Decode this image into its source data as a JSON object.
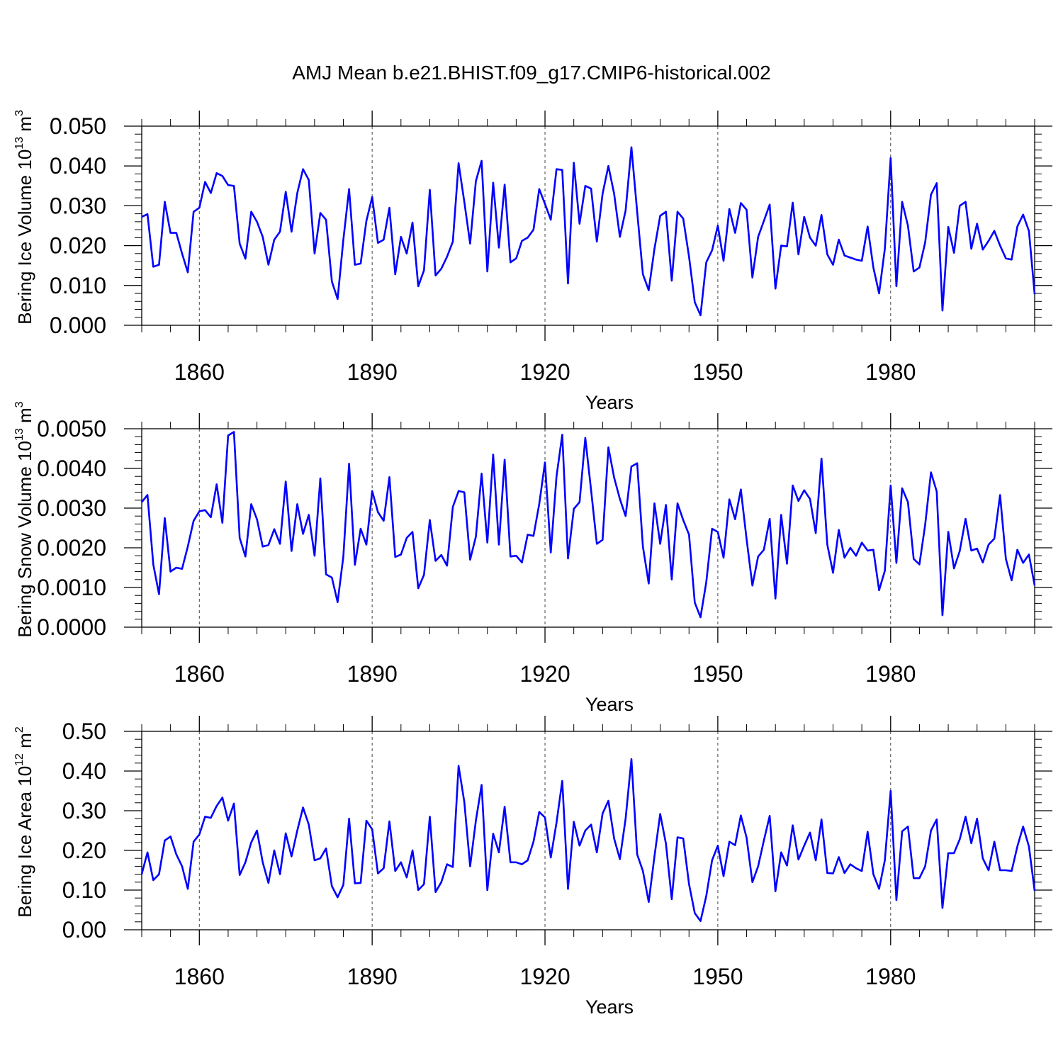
{
  "title": "AMJ Mean b.e21.BHIST.f09_g17.CMIP6-historical.002",
  "chart_data": [
    {
      "type": "line",
      "title": "AMJ Mean b.e21.BHIST.f09_g17.CMIP6-historical.002",
      "xlabel": "Years",
      "ylabel_main": "Bering Ice Volume 10",
      "ylabel_exp": "13",
      "ylabel_unit": "m",
      "ylabel_unit_exp": "3",
      "xlim": [
        1850,
        2005
      ],
      "ylim": [
        0,
        0.05
      ],
      "xticks": [
        1860,
        1890,
        1920,
        1950,
        1980
      ],
      "yticks": [
        "0.000",
        "0.010",
        "0.020",
        "0.030",
        "0.040",
        "0.050"
      ],
      "ytick_values": [
        0,
        0.01,
        0.02,
        0.03,
        0.04,
        0.05
      ],
      "line_color": "#0000ff",
      "x_start": 1850,
      "values": [
        0.0272,
        0.0279,
        0.0147,
        0.0152,
        0.031,
        0.0232,
        0.0232,
        0.018,
        0.0133,
        0.0285,
        0.0295,
        0.036,
        0.0332,
        0.0382,
        0.0375,
        0.0352,
        0.035,
        0.0205,
        0.0167,
        0.0285,
        0.026,
        0.0222,
        0.0152,
        0.0215,
        0.0235,
        0.0335,
        0.0235,
        0.0332,
        0.0392,
        0.0365,
        0.018,
        0.0282,
        0.0265,
        0.011,
        0.0066,
        0.0215,
        0.0342,
        0.0152,
        0.0155,
        0.0262,
        0.0322,
        0.0207,
        0.0215,
        0.0295,
        0.0128,
        0.0222,
        0.018,
        0.0258,
        0.0098,
        0.0138,
        0.034,
        0.0125,
        0.0142,
        0.0172,
        0.021,
        0.0407,
        0.031,
        0.0205,
        0.0362,
        0.0413,
        0.0135,
        0.0358,
        0.0195,
        0.0353,
        0.0158,
        0.0168,
        0.0212,
        0.022,
        0.024,
        0.0342,
        0.0305,
        0.0265,
        0.0392,
        0.039,
        0.0105,
        0.0408,
        0.0255,
        0.035,
        0.0343,
        0.021,
        0.033,
        0.04,
        0.033,
        0.0222,
        0.0288,
        0.0447,
        0.0285,
        0.0128,
        0.0088,
        0.0192,
        0.0275,
        0.0285,
        0.0112,
        0.0285,
        0.0268,
        0.0172,
        0.0058,
        0.0025,
        0.0158,
        0.0188,
        0.025,
        0.0162,
        0.0292,
        0.0232,
        0.0307,
        0.029,
        0.012,
        0.0222,
        0.0262,
        0.0303,
        0.0092,
        0.02,
        0.0198,
        0.0308,
        0.0178,
        0.0272,
        0.022,
        0.02,
        0.0277,
        0.0178,
        0.0152,
        0.0215,
        0.0175,
        0.017,
        0.0165,
        0.0162,
        0.0248,
        0.0145,
        0.008,
        0.0192,
        0.042,
        0.0098,
        0.031,
        0.025,
        0.0135,
        0.0145,
        0.0208,
        0.0328,
        0.0357,
        0.0037,
        0.0247,
        0.0182,
        0.03,
        0.031,
        0.0192,
        0.0255,
        0.019,
        0.0212,
        0.0237,
        0.02,
        0.0168,
        0.0165,
        0.0248,
        0.0278,
        0.0237,
        0.0078
      ]
    },
    {
      "type": "line",
      "xlabel": "Years",
      "ylabel_main": "Bering Snow Volume 10",
      "ylabel_exp": "13",
      "ylabel_unit": "m",
      "ylabel_unit_exp": "3",
      "xlim": [
        1850,
        2005
      ],
      "ylim": [
        0,
        0.005
      ],
      "xticks": [
        1860,
        1890,
        1920,
        1950,
        1980
      ],
      "yticks": [
        "0.0000",
        "0.0010",
        "0.0020",
        "0.0030",
        "0.0040",
        "0.0050"
      ],
      "ytick_values": [
        0,
        0.001,
        0.002,
        0.003,
        0.004,
        0.005
      ],
      "line_color": "#0000ff",
      "x_start": 1850,
      "values": [
        0.00315,
        0.00333,
        0.00158,
        0.00083,
        0.00275,
        0.0014,
        0.0015,
        0.00147,
        0.00203,
        0.00268,
        0.00292,
        0.00295,
        0.00277,
        0.0036,
        0.00263,
        0.00483,
        0.00492,
        0.00225,
        0.00178,
        0.0031,
        0.00272,
        0.00203,
        0.00207,
        0.00247,
        0.0021,
        0.00367,
        0.00192,
        0.0031,
        0.00235,
        0.00283,
        0.0018,
        0.00375,
        0.00133,
        0.00125,
        0.00063,
        0.00178,
        0.00412,
        0.00157,
        0.00248,
        0.00208,
        0.00343,
        0.0029,
        0.00268,
        0.00378,
        0.00177,
        0.00183,
        0.00225,
        0.0024,
        0.00098,
        0.00132,
        0.0027,
        0.00167,
        0.00182,
        0.00155,
        0.00303,
        0.00343,
        0.0034,
        0.0017,
        0.00228,
        0.00387,
        0.00213,
        0.00435,
        0.00208,
        0.00422,
        0.00178,
        0.0018,
        0.00163,
        0.00233,
        0.0023,
        0.0031,
        0.00415,
        0.00188,
        0.0038,
        0.00485,
        0.00173,
        0.00298,
        0.00315,
        0.00477,
        0.00345,
        0.0021,
        0.0022,
        0.00453,
        0.00377,
        0.00323,
        0.0028,
        0.00405,
        0.00413,
        0.00203,
        0.0011,
        0.00312,
        0.0021,
        0.00308,
        0.0012,
        0.00312,
        0.0027,
        0.00233,
        0.00062,
        0.00025,
        0.00113,
        0.00248,
        0.0024,
        0.00175,
        0.00322,
        0.00272,
        0.00347,
        0.00222,
        0.00105,
        0.00178,
        0.00195,
        0.00273,
        0.00072,
        0.00283,
        0.0016,
        0.00357,
        0.00318,
        0.00345,
        0.00323,
        0.00237,
        0.00425,
        0.00208,
        0.00137,
        0.00245,
        0.00175,
        0.002,
        0.0018,
        0.00213,
        0.00193,
        0.00195,
        0.00093,
        0.00142,
        0.00357,
        0.00162,
        0.0035,
        0.00315,
        0.00172,
        0.00158,
        0.00258,
        0.0039,
        0.00342,
        0.0003,
        0.0024,
        0.00148,
        0.00192,
        0.00273,
        0.00193,
        0.00198,
        0.00163,
        0.00208,
        0.00223,
        0.00333,
        0.00172,
        0.00118,
        0.00195,
        0.00162,
        0.00183,
        0.00105
      ]
    },
    {
      "type": "line",
      "xlabel": "Years",
      "ylabel_main": "Bering Ice Area 10",
      "ylabel_exp": "12",
      "ylabel_unit": "m",
      "ylabel_unit_exp": "2",
      "xlim": [
        1850,
        2005
      ],
      "ylim": [
        0,
        0.5
      ],
      "xticks": [
        1860,
        1890,
        1920,
        1950,
        1980
      ],
      "yticks": [
        "0.00",
        "0.10",
        "0.20",
        "0.30",
        "0.40",
        "0.50"
      ],
      "ytick_values": [
        0,
        0.1,
        0.2,
        0.3,
        0.4,
        0.5
      ],
      "line_color": "#0000ff",
      "x_start": 1850,
      "values": [
        0.14,
        0.195,
        0.125,
        0.14,
        0.225,
        0.235,
        0.19,
        0.16,
        0.103,
        0.222,
        0.24,
        0.285,
        0.282,
        0.312,
        0.333,
        0.275,
        0.318,
        0.138,
        0.17,
        0.22,
        0.25,
        0.17,
        0.118,
        0.2,
        0.14,
        0.243,
        0.185,
        0.25,
        0.308,
        0.265,
        0.175,
        0.18,
        0.205,
        0.11,
        0.082,
        0.113,
        0.28,
        0.117,
        0.118,
        0.275,
        0.253,
        0.142,
        0.155,
        0.273,
        0.148,
        0.17,
        0.132,
        0.2,
        0.1,
        0.115,
        0.285,
        0.095,
        0.12,
        0.165,
        0.158,
        0.413,
        0.322,
        0.16,
        0.275,
        0.365,
        0.1,
        0.242,
        0.195,
        0.31,
        0.17,
        0.17,
        0.165,
        0.175,
        0.222,
        0.297,
        0.283,
        0.182,
        0.27,
        0.375,
        0.103,
        0.272,
        0.212,
        0.25,
        0.265,
        0.195,
        0.293,
        0.325,
        0.23,
        0.178,
        0.28,
        0.43,
        0.19,
        0.148,
        0.07,
        0.185,
        0.292,
        0.217,
        0.077,
        0.233,
        0.23,
        0.115,
        0.042,
        0.022,
        0.085,
        0.175,
        0.212,
        0.135,
        0.222,
        0.213,
        0.288,
        0.232,
        0.12,
        0.16,
        0.225,
        0.287,
        0.097,
        0.195,
        0.162,
        0.263,
        0.177,
        0.212,
        0.245,
        0.175,
        0.278,
        0.143,
        0.142,
        0.183,
        0.143,
        0.165,
        0.155,
        0.148,
        0.247,
        0.14,
        0.103,
        0.175,
        0.35,
        0.075,
        0.248,
        0.26,
        0.13,
        0.13,
        0.16,
        0.25,
        0.278,
        0.055,
        0.193,
        0.193,
        0.228,
        0.285,
        0.218,
        0.28,
        0.18,
        0.15,
        0.222,
        0.15,
        0.15,
        0.148,
        0.21,
        0.26,
        0.21,
        0.098
      ]
    }
  ]
}
